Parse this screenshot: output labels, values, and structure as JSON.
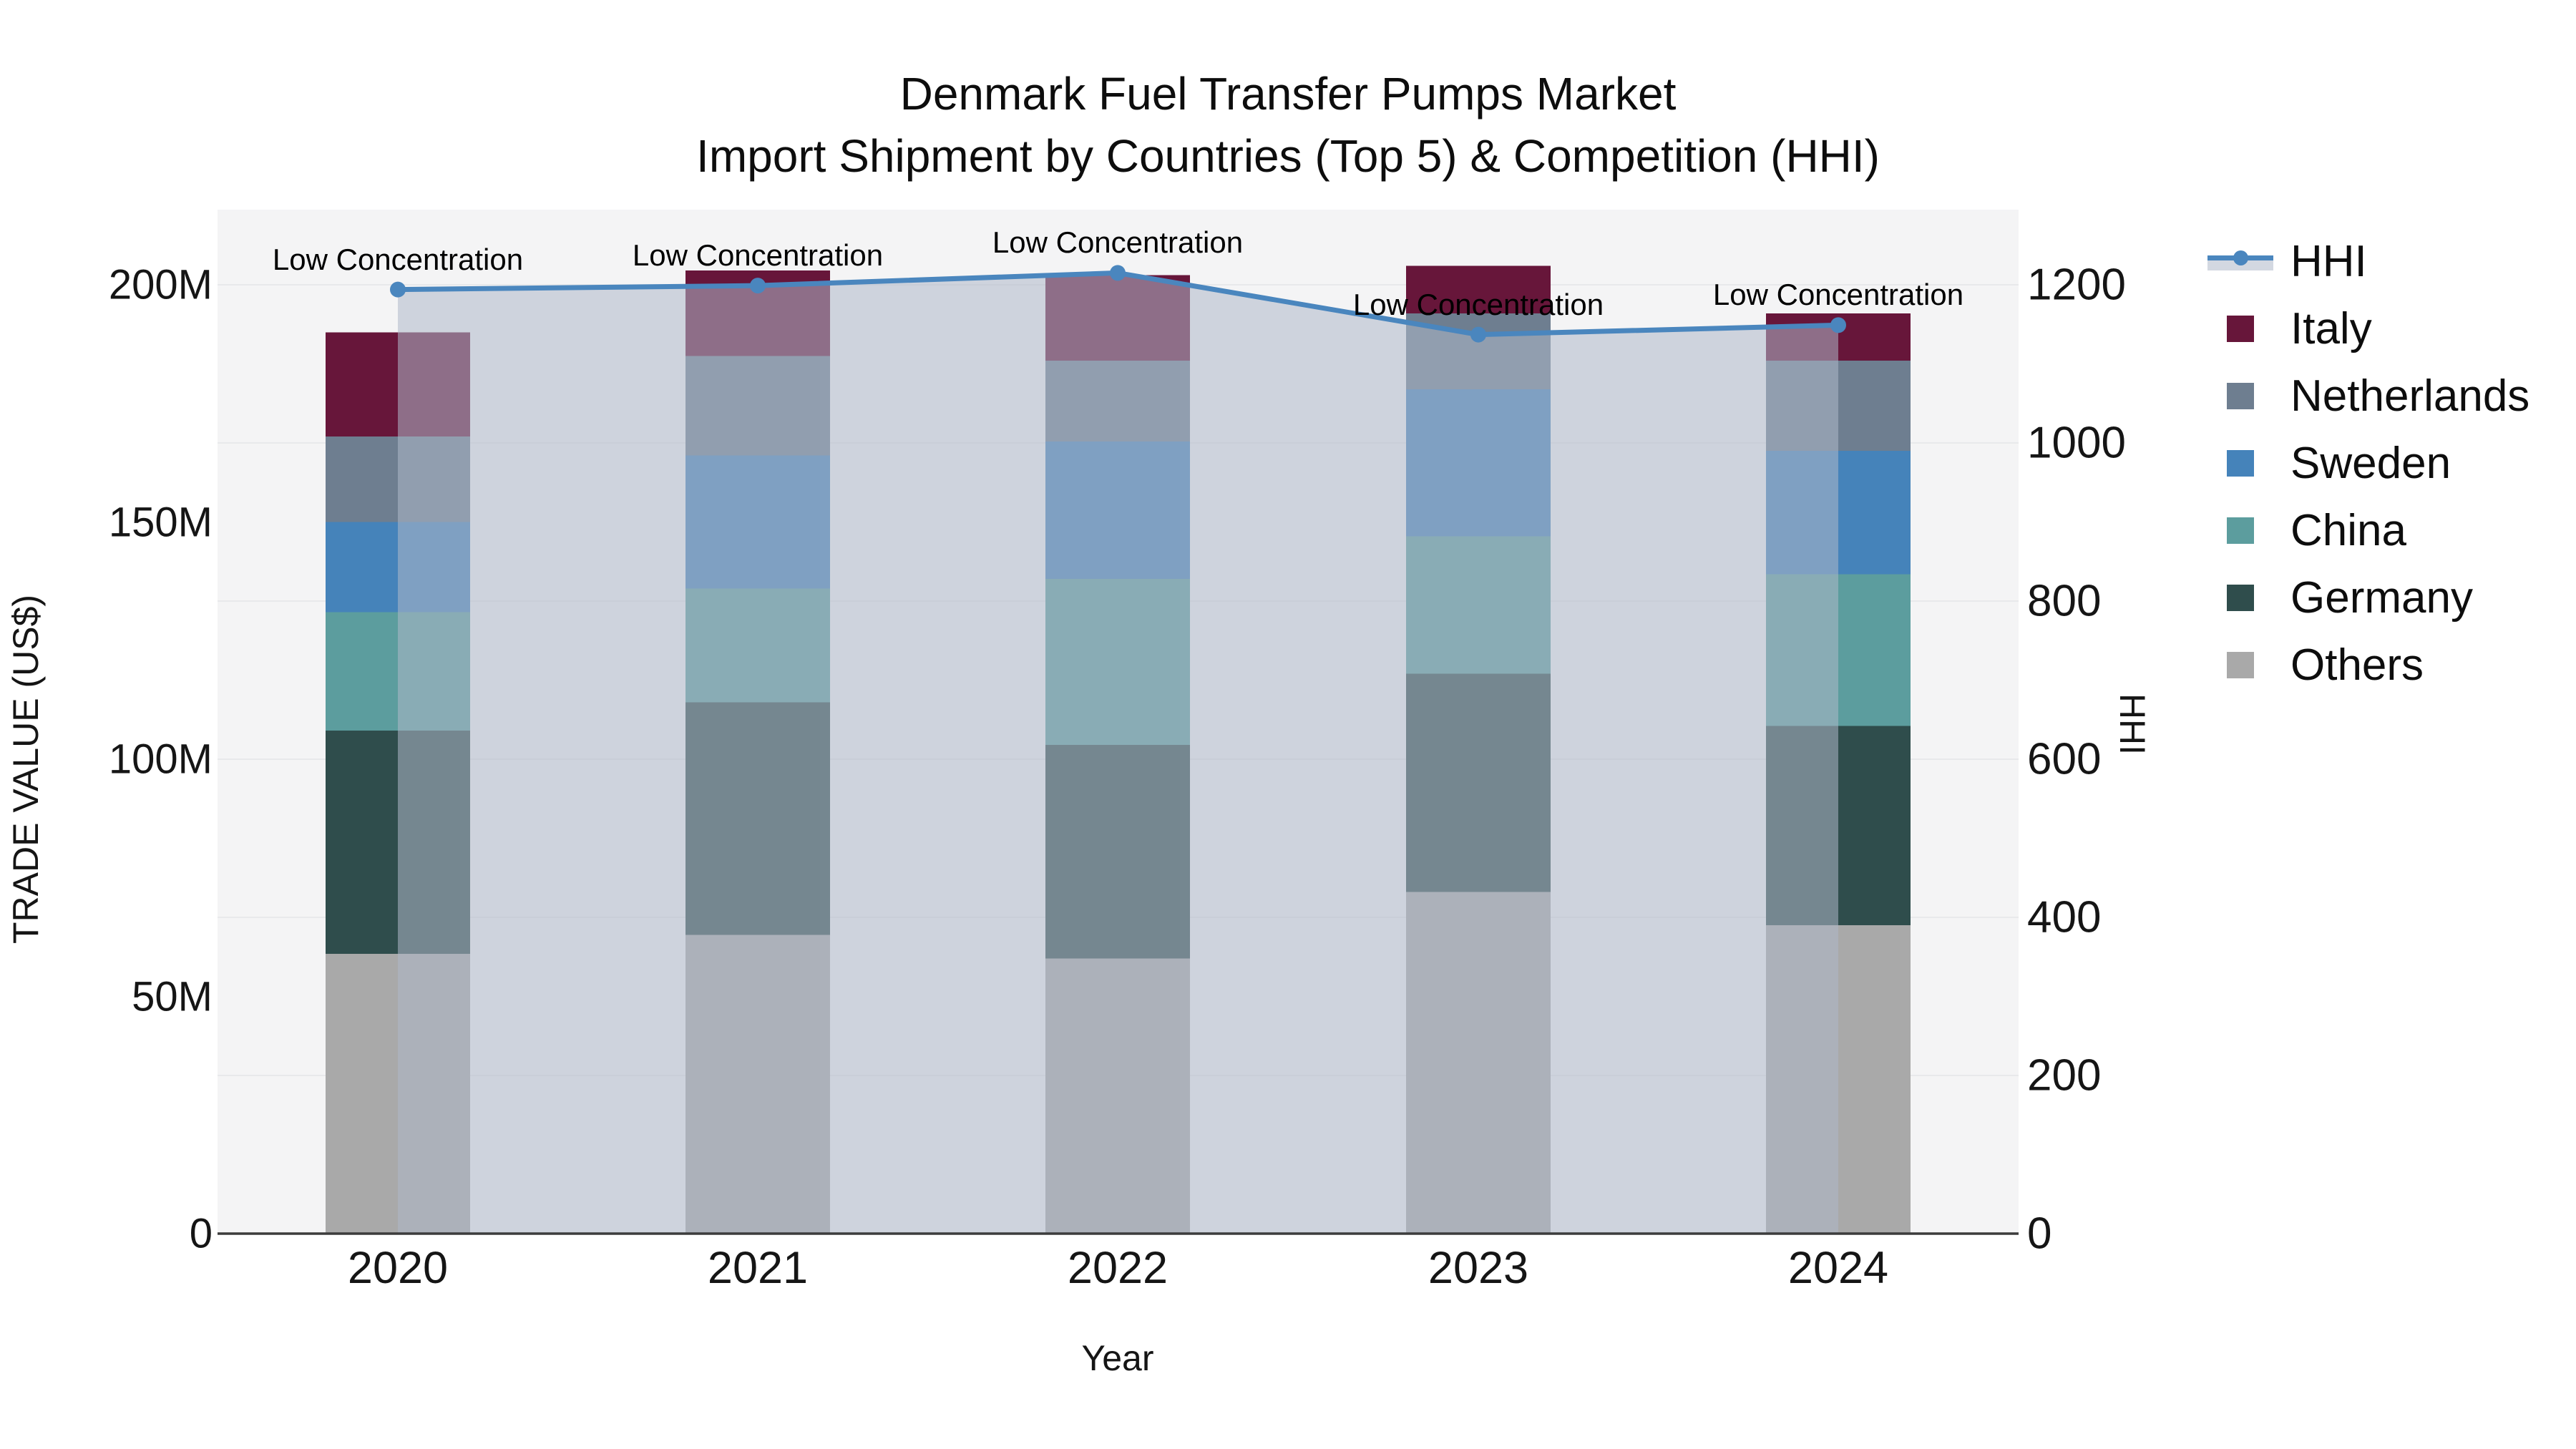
{
  "title": {
    "line1": "Denmark Fuel Transfer Pumps Market",
    "line2": "Import Shipment by Countries (Top 5) & Competition (HHI)"
  },
  "axes": {
    "x": {
      "title": "Year",
      "categories": [
        "2020",
        "2021",
        "2022",
        "2023",
        "2024"
      ]
    },
    "y_left": {
      "title": "TRADE VALUE (US$)",
      "tick_labels": [
        "0",
        "50M",
        "100M",
        "150M",
        "200M"
      ],
      "tick_values_musd": [
        0,
        50,
        100,
        150,
        200
      ]
    },
    "y_right": {
      "title": "HHI",
      "tick_labels": [
        "0",
        "200",
        "400",
        "600",
        "800",
        "1000",
        "1200"
      ],
      "tick_values": [
        0,
        200,
        400,
        600,
        800,
        1000,
        1200
      ]
    }
  },
  "annotations": {
    "label": "Low Concentration"
  },
  "legend": {
    "items": [
      {
        "label": "HHI",
        "marker": "line-fill",
        "color": "#4a86be",
        "band_color": "#d3d8e1"
      },
      {
        "label": "Italy",
        "marker": "square",
        "color": "#67163a"
      },
      {
        "label": "Netherlands",
        "marker": "square",
        "color": "#6e7e90"
      },
      {
        "label": "Sweden",
        "marker": "square",
        "color": "#4583ba"
      },
      {
        "label": "China",
        "marker": "square",
        "color": "#5c9d9e"
      },
      {
        "label": "Germany",
        "marker": "square",
        "color": "#2f4d4c"
      },
      {
        "label": "Others",
        "marker": "square",
        "color": "#a9a9a9"
      }
    ]
  },
  "chart_data": {
    "type": "bar+line",
    "title": "Denmark Fuel Transfer Pumps Market — Import Shipment by Countries (Top 5) & Competition (HHI)",
    "categories": [
      "2020",
      "2021",
      "2022",
      "2023",
      "2024"
    ],
    "stack_order": "bottom_to_top",
    "bar_series": [
      {
        "name": "Others",
        "color": "#a9a9a9",
        "values_musd": [
          59,
          63,
          58,
          72,
          65
        ]
      },
      {
        "name": "Germany",
        "color": "#2f4d4c",
        "values_musd": [
          47,
          49,
          45,
          46,
          42
        ]
      },
      {
        "name": "China",
        "color": "#5c9d9e",
        "values_musd": [
          25,
          24,
          35,
          29,
          32
        ]
      },
      {
        "name": "Sweden",
        "color": "#4583ba",
        "values_musd": [
          19,
          28,
          29,
          31,
          26
        ]
      },
      {
        "name": "Netherlands",
        "color": "#6e7e90",
        "values_musd": [
          18,
          21,
          17,
          16,
          19
        ]
      },
      {
        "name": "Italy",
        "color": "#67163a",
        "values_musd": [
          22,
          18,
          18,
          10,
          10
        ]
      }
    ],
    "bar_totals_musd": [
      190,
      203,
      202,
      204,
      194
    ],
    "line_series": {
      "name": "HHI",
      "axis": "right",
      "values": [
        1194,
        1199,
        1215,
        1137,
        1149
      ],
      "color": "#4a86be",
      "area_fill_color": "rgba(175,184,200,0.55)",
      "point_labels": [
        "Low Concentration",
        "Low Concentration",
        "Low Concentration",
        "Low Concentration",
        "Low Concentration"
      ]
    },
    "xlabel": "Year",
    "ylabel_left": "TRADE VALUE (US$)",
    "ylabel_right": "HHI",
    "ylim_left_musd": [
      0,
      215.8
    ],
    "ylim_right": [
      0,
      1295
    ],
    "grid": "horizontal, at right-axis ticks every 200",
    "legend_position": "right"
  },
  "colors": {
    "plot_background": "#f4f4f5",
    "figure_background": "#ffffff",
    "gridline": "#e8e9eb",
    "axis_line": "#3c3c3c",
    "hhi_line": "#4a86be",
    "area_fill": "rgba(175,184,200,0.55)",
    "text": "#111111"
  }
}
